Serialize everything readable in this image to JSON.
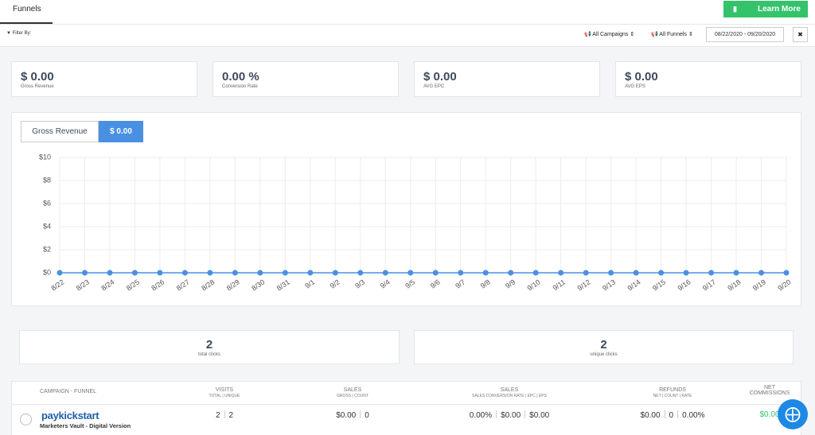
{
  "header": {
    "tab": "Funnels",
    "button": "Learn More"
  },
  "filters": {
    "label": "Filter By:",
    "campaigns": "All Campaigns",
    "funnels": "All Funnels",
    "date_range": "08/22/2020 - 09/20/2020",
    "close": "✖"
  },
  "stats": [
    {
      "value": "$ 0.00",
      "label": "Gross Revenue"
    },
    {
      "value": "0.00 %",
      "label": "Conversion Rate"
    },
    {
      "value": "$ 0.00",
      "label": "AVG EPC"
    },
    {
      "value": "$ 0.00",
      "label": "AVG EPS"
    }
  ],
  "chart_data": {
    "type": "line",
    "metric": "Gross Revenue",
    "metric_total": "$ 0.00",
    "color": "#4a90e2",
    "grid": true,
    "categories": [
      "8/22",
      "8/23",
      "8/24",
      "8/25",
      "8/26",
      "8/27",
      "8/28",
      "8/29",
      "8/30",
      "8/31",
      "9/1",
      "9/2",
      "9/3",
      "9/4",
      "9/5",
      "9/6",
      "9/7",
      "9/8",
      "9/9",
      "9/10",
      "9/11",
      "9/12",
      "9/13",
      "9/14",
      "9/15",
      "9/16",
      "9/17",
      "9/18",
      "9/19",
      "9/20"
    ],
    "values": [
      0,
      0,
      0,
      0,
      0,
      0,
      0,
      0,
      0,
      0,
      0,
      0,
      0,
      0,
      0,
      0,
      0,
      0,
      0,
      0,
      0,
      0,
      0,
      0,
      0,
      0,
      0,
      0,
      0,
      0
    ],
    "ylim": [
      0,
      10
    ],
    "yticks": [
      {
        "value": 0,
        "label": "$0"
      },
      {
        "value": 2,
        "label": "$2"
      },
      {
        "value": 4,
        "label": "$4"
      },
      {
        "value": 6,
        "label": "$6"
      },
      {
        "value": 8,
        "label": "$8"
      },
      {
        "value": 10,
        "label": "$10"
      }
    ]
  },
  "clicks": [
    {
      "value": "2",
      "label": "total clicks"
    },
    {
      "value": "2",
      "label": "unique clicks"
    }
  ],
  "table": {
    "columns": [
      {
        "title": "CAMPAIGN - FUNNEL"
      },
      {
        "title": "VISITS",
        "sub": "TOTAL | UNIQUE"
      },
      {
        "title": "SALES",
        "sub": "GROSS | COUNT"
      },
      {
        "title": "SALES",
        "sub": "SALES CONVERSION RATE | EPC | EPS"
      },
      {
        "title": "REFUNDS",
        "sub": "NET | COUNT | RATE"
      },
      {
        "title": "NET COMMISSIONS"
      }
    ],
    "rows": [
      {
        "logo": "paykickstart",
        "funnel": "Marketers Vault - Digital Version",
        "cells": [
          [
            "2",
            "2"
          ],
          [
            "$0.00",
            "0"
          ],
          [
            "0.00%",
            "$0.00",
            "$0.00"
          ],
          [
            "$0.00",
            "0",
            "0.00%"
          ],
          [
            "$0.00"
          ]
        ]
      }
    ]
  }
}
